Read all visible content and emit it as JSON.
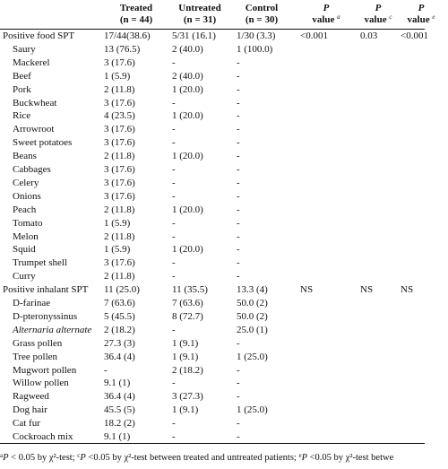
{
  "header": {
    "treated": "Treated",
    "treated_n": "(n = 44)",
    "untreated": "Untreated",
    "untreated_n": "(n = 31)",
    "control": "Control",
    "control_n": "(n = 30)",
    "p": "P",
    "value": "value",
    "sup_a": "a",
    "sup_c": "c",
    "sup_e": "e"
  },
  "rows": [
    {
      "label": "Positive food SPT",
      "treated": "17/44(38.6)",
      "untreated": "5/31 (16.1)",
      "control": "1/30 (3.3)",
      "p1": "<0.001",
      "p2": "0.03",
      "p3": "<0.001"
    },
    {
      "label": "Saury",
      "treated": "13 (76.5)",
      "untreated": "2 (40.0)",
      "control": "1 (100.0)"
    },
    {
      "label": "Mackerel",
      "treated": "3 (17.6)",
      "untreated": "-",
      "control": "-"
    },
    {
      "label": "Beef",
      "treated": "1 (5.9)",
      "untreated": "2 (40.0)",
      "control": "-"
    },
    {
      "label": "Pork",
      "treated": "2 (11.8)",
      "untreated": "1 (20.0)",
      "control": "-"
    },
    {
      "label": "Buckwheat",
      "treated": "3 (17.6)",
      "untreated": "-",
      "control": "-"
    },
    {
      "label": "Rice",
      "treated": "4 (23.5)",
      "untreated": "1 (20.0)",
      "control": "-"
    },
    {
      "label": "Arrowroot",
      "treated": "3 (17.6)",
      "untreated": "-",
      "control": "-"
    },
    {
      "label": "Sweet potatoes",
      "treated": "3 (17.6)",
      "untreated": "-",
      "control": "-"
    },
    {
      "label": "Beans",
      "treated": "2 (11.8)",
      "untreated": "1 (20.0)",
      "control": "-"
    },
    {
      "label": "Cabbages",
      "treated": "3 (17.6)",
      "untreated": "-",
      "control": "-"
    },
    {
      "label": "Celery",
      "treated": "3 (17.6)",
      "untreated": "-",
      "control": "-"
    },
    {
      "label": "Onions",
      "treated": "3 (17.6)",
      "untreated": "-",
      "control": "-"
    },
    {
      "label": "Peach",
      "treated": "2 (11.8)",
      "untreated": "1 (20.0)",
      "control": "-"
    },
    {
      "label": "Tomato",
      "treated": "1 (5.9)",
      "untreated": "-",
      "control": "-"
    },
    {
      "label": "Melon",
      "treated": "2 (11.8)",
      "untreated": "-",
      "control": "-"
    },
    {
      "label": "Squid",
      "treated": "1 (5.9)",
      "untreated": "1 (20.0)",
      "control": "-"
    },
    {
      "label": "Trumpet shell",
      "treated": "3 (17.6)",
      "untreated": "-",
      "control": "-"
    },
    {
      "label": "Curry",
      "treated": "2 (11.8)",
      "untreated": "-",
      "control": "-"
    },
    {
      "label": "Positive inhalant SPT",
      "treated": "11 (25.0)",
      "untreated": "11 (35.5)",
      "control": "13.3 (4)",
      "p1": "NS",
      "p2": "NS",
      "p3": "NS"
    },
    {
      "label": "D-farinae",
      "treated": "7 (63.6)",
      "untreated": "7 (63.6)",
      "control": "50.0 (2)"
    },
    {
      "label": "D-pteronyssinus",
      "treated": "5 (45.5)",
      "untreated": "8 (72.7)",
      "control": "50.0 (2)"
    },
    {
      "label": "Alternaria alternate",
      "treated": "2 (18.2)",
      "untreated": "-",
      "control": "25.0 (1)"
    },
    {
      "label": "Grass pollen",
      "treated": "27.3 (3)",
      "untreated": "1 (9.1)",
      "control": "-"
    },
    {
      "label": "Tree pollen",
      "treated": "36.4 (4)",
      "untreated": "1 (9.1)",
      "control": "1 (25.0)"
    },
    {
      "label": "Mugwort pollen",
      "treated": "-",
      "untreated": "2 (18.2)",
      "control": "-"
    },
    {
      "label": "Willow pollen",
      "treated": "9.1 (1)",
      "untreated": "-",
      "control": "-"
    },
    {
      "label": "Ragweed",
      "treated": "36.4 (4)",
      "untreated": "3 (27.3)",
      "control": "-"
    },
    {
      "label": "Dog hair",
      "treated": "45.5 (5)",
      "untreated": "1 (9.1)",
      "control": "1 (25.0)"
    },
    {
      "label": "Cat fur",
      "treated": "18.2 (2)",
      "untreated": "-",
      "control": "-"
    },
    {
      "label": "Cockroach mix",
      "treated": "9.1 (1)",
      "untreated": "-",
      "control": "-"
    }
  ],
  "footnote": {
    "sup_a": "a",
    "p1": "P",
    "text1": " < 0.05 by χ²-test; ",
    "sup_c": "c",
    "p2": "P",
    "text2": " <0.05 by χ²-test between treated and untreated patients; ",
    "sup_e": "e",
    "p3": "P",
    "text3": " <0.05 by χ²-test betwe"
  }
}
